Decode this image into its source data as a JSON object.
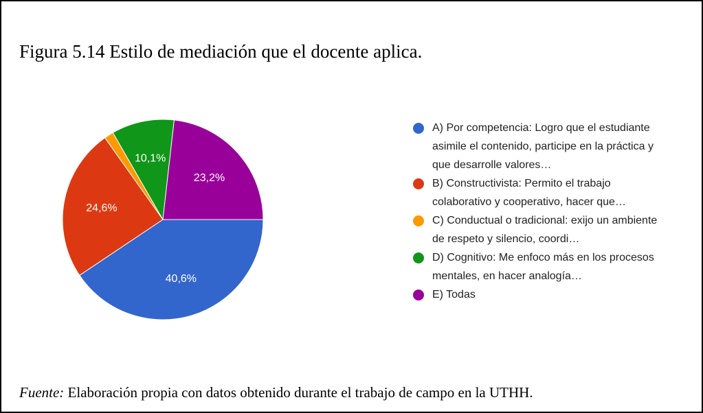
{
  "chart_data": {
    "type": "pie",
    "title": "Figura 5.14 Estilo de mediación que el docente aplica.",
    "categories": [
      "A) Por competencia: Logro que el estudiante asimile el contenido, participe en la práctica y que desarrolle valores…",
      "B) Constructivista: Permito el trabajo colaborativo y cooperativo, hacer que…",
      "C) Conductual o tradicional: exijo un ambiente de respeto y silencio, coordi…",
      "D) Cognitivo: Me enfoco más en los procesos mentales, en hacer analogía…",
      "E) Todas"
    ],
    "values": [
      40.6,
      24.6,
      1.5,
      10.1,
      23.2
    ],
    "value_labels": [
      "40,6%",
      "24,6%",
      null,
      "10,1%",
      "23,2%"
    ],
    "colors": [
      "#3366cc",
      "#dc3912",
      "#ff9900",
      "#109618",
      "#990099"
    ],
    "legend": "right"
  },
  "source_label": "Fuente:",
  "source": "Elaboración propia con datos obtenido durante el trabajo de campo en la UTHH."
}
